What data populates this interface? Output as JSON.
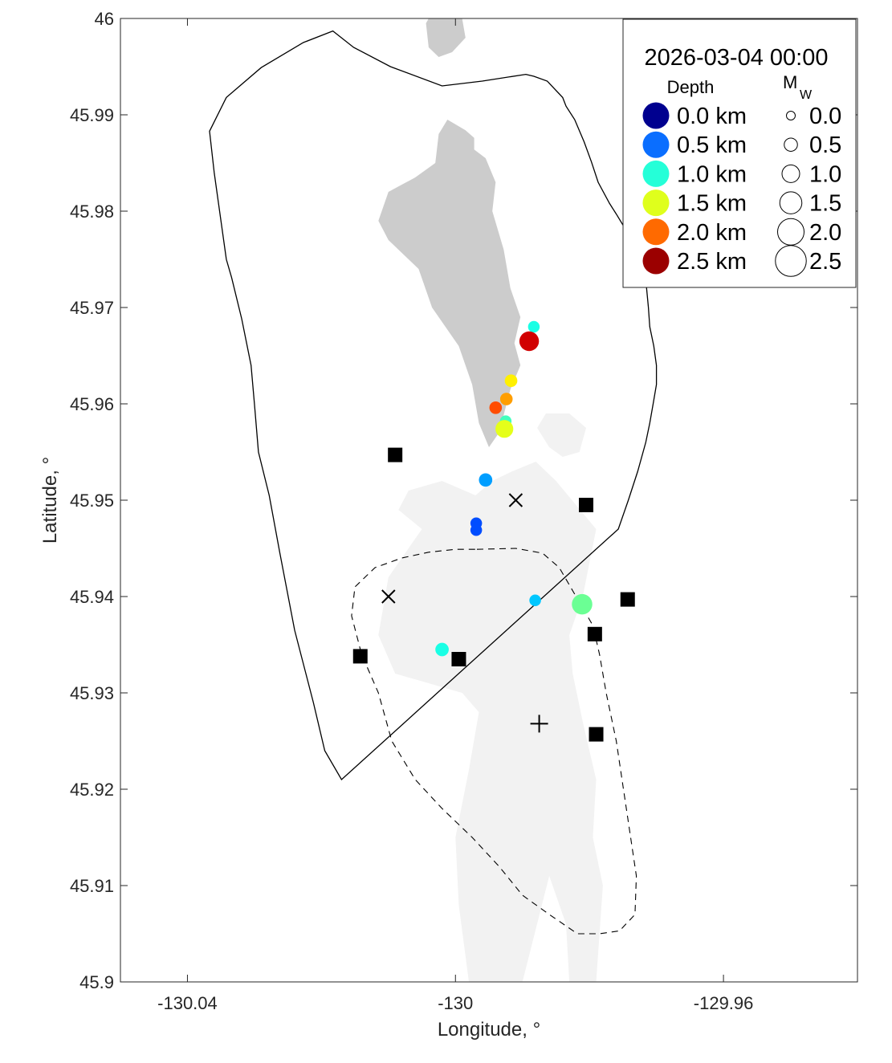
{
  "chart_data": {
    "type": "scatter",
    "title": "2026-03-04 00:00",
    "xlabel": "Longitude, °",
    "ylabel": "Latitude, °",
    "xlim": [
      -130.05,
      -129.94
    ],
    "ylim": [
      45.9,
      46.0
    ],
    "xticks": [
      -130.04,
      -130,
      -129.96
    ],
    "xtick_labels": [
      "-130.04",
      "-130",
      "-129.96"
    ],
    "yticks": [
      45.9,
      45.91,
      45.92,
      45.93,
      45.94,
      45.95,
      45.96,
      45.97,
      45.98,
      45.99,
      46.0
    ],
    "ytick_labels": [
      "45.9",
      "45.91",
      "45.92",
      "45.93",
      "45.94",
      "45.95",
      "45.96",
      "45.97",
      "45.98",
      "45.99",
      "46"
    ],
    "grid": false,
    "legend_position": "top-right",
    "legend": {
      "depth_header": "Depth",
      "mw_header": "M",
      "mw_subscript": "W",
      "depth_entries": [
        {
          "label": "0.0 km",
          "color": "#00008f"
        },
        {
          "label": "0.5 km",
          "color": "#0a6eff"
        },
        {
          "label": "1.0 km",
          "color": "#25ffd8"
        },
        {
          "label": "1.5 km",
          "color": "#dfff1c"
        },
        {
          "label": "2.0 km",
          "color": "#ff6a00"
        },
        {
          "label": "2.5 km",
          "color": "#9b0000"
        }
      ],
      "magnitude_entries": [
        {
          "label": "0.0",
          "mw": 0.0
        },
        {
          "label": "0.5",
          "mw": 0.5
        },
        {
          "label": "1.0",
          "mw": 1.0
        },
        {
          "label": "1.5",
          "mw": 1.5
        },
        {
          "label": "2.0",
          "mw": 2.0
        },
        {
          "label": "2.5",
          "mw": 2.5
        }
      ]
    },
    "earthquakes": [
      {
        "lon": -129.9883,
        "lat": 45.968,
        "depth_km": 1.0,
        "mw": 0.5
      },
      {
        "lon": -129.989,
        "lat": 45.9665,
        "depth_km": 2.3,
        "mw": 1.4
      },
      {
        "lon": -129.9917,
        "lat": 45.9624,
        "depth_km": 1.6,
        "mw": 0.6
      },
      {
        "lon": -129.9924,
        "lat": 45.9605,
        "depth_km": 1.8,
        "mw": 0.6
      },
      {
        "lon": -129.994,
        "lat": 45.9596,
        "depth_km": 2.0,
        "mw": 0.6
      },
      {
        "lon": -129.9925,
        "lat": 45.9582,
        "depth_km": 1.1,
        "mw": 0.5
      },
      {
        "lon": -129.9927,
        "lat": 45.9574,
        "depth_km": 1.5,
        "mw": 1.2
      },
      {
        "lon": -129.9955,
        "lat": 45.9521,
        "depth_km": 0.7,
        "mw": 0.7
      },
      {
        "lon": -129.9969,
        "lat": 45.9476,
        "depth_km": 0.5,
        "mw": 0.5
      },
      {
        "lon": -129.9969,
        "lat": 45.9469,
        "depth_km": 0.5,
        "mw": 0.5
      },
      {
        "lon": -129.9881,
        "lat": 45.9396,
        "depth_km": 0.8,
        "mw": 0.5
      },
      {
        "lon": -129.9811,
        "lat": 45.9392,
        "depth_km": 1.2,
        "mw": 1.5
      },
      {
        "lon": -130.002,
        "lat": 45.9345,
        "depth_km": 1.0,
        "mw": 0.7
      }
    ],
    "stations": [
      {
        "lon": -130.009,
        "lat": 45.9547
      },
      {
        "lon": -129.9805,
        "lat": 45.9495
      },
      {
        "lon": -129.9743,
        "lat": 45.9397
      },
      {
        "lon": -129.9792,
        "lat": 45.9361
      },
      {
        "lon": -130.0142,
        "lat": 45.9338
      },
      {
        "lon": -129.9995,
        "lat": 45.9335
      },
      {
        "lon": -129.979,
        "lat": 45.9257
      }
    ],
    "x_markers": [
      {
        "lon": -129.991,
        "lat": 45.95
      },
      {
        "lon": -130.01,
        "lat": 45.94
      }
    ],
    "plus_markers": [
      {
        "lon": -129.9875,
        "lat": 45.9268
      }
    ],
    "outer_boundary": [
      [
        -129.9895,
        45.9942
      ],
      [
        -129.9883,
        45.994
      ],
      [
        -129.9863,
        45.9935
      ],
      [
        -129.984,
        45.9918
      ],
      [
        -129.9835,
        45.9909
      ],
      [
        -129.9822,
        45.9895
      ],
      [
        -129.9808,
        45.9872
      ],
      [
        -129.9797,
        45.9851
      ],
      [
        -129.9787,
        45.983
      ],
      [
        -129.977,
        45.9808
      ],
      [
        -129.976,
        45.9797
      ],
      [
        -129.974,
        45.9774
      ],
      [
        -129.9732,
        45.976
      ],
      [
        -129.9722,
        45.9743
      ],
      [
        -129.9715,
        45.9722
      ],
      [
        -129.9712,
        45.97
      ],
      [
        -129.971,
        45.968
      ],
      [
        -129.9704,
        45.966
      ],
      [
        -129.97,
        45.964
      ],
      [
        -129.97,
        45.962
      ],
      [
        -129.9705,
        45.96
      ],
      [
        -129.971,
        45.958
      ],
      [
        -129.9716,
        45.956
      ],
      [
        -129.9728,
        45.953
      ],
      [
        -129.9742,
        45.95
      ],
      [
        -129.9757,
        45.947
      ],
      [
        -130.017,
        45.921
      ],
      [
        -130.0195,
        45.924
      ],
      [
        -130.0212,
        45.929
      ],
      [
        -130.024,
        45.9365
      ],
      [
        -130.0262,
        45.9445
      ],
      [
        -130.0278,
        45.9505
      ],
      [
        -130.0294,
        45.955
      ],
      [
        -130.03,
        45.96
      ],
      [
        -130.0305,
        45.964
      ],
      [
        -130.0319,
        45.9688
      ],
      [
        -130.0334,
        45.9731
      ],
      [
        -130.0342,
        45.975
      ],
      [
        -130.036,
        45.984
      ],
      [
        -130.0367,
        45.9883
      ],
      [
        -130.0342,
        45.9918
      ],
      [
        -130.029,
        45.9949
      ],
      [
        -130.0227,
        45.9975
      ],
      [
        -130.0183,
        45.9987
      ],
      [
        -130.0152,
        45.997
      ],
      [
        -130.0097,
        45.995
      ],
      [
        -130.002,
        45.993
      ],
      [
        -129.996,
        45.9935
      ]
    ],
    "caldera_dashed": [
      [
        -129.9968,
        45.9449
      ],
      [
        -129.991,
        45.945
      ],
      [
        -129.987,
        45.9445
      ],
      [
        -129.9845,
        45.943
      ],
      [
        -129.982,
        45.94
      ],
      [
        -129.9795,
        45.937
      ],
      [
        -129.9785,
        45.934
      ],
      [
        -129.9775,
        45.93
      ],
      [
        -129.976,
        45.925
      ],
      [
        -129.9745,
        45.918
      ],
      [
        -129.973,
        45.911
      ],
      [
        -129.9732,
        45.907
      ],
      [
        -129.9755,
        45.9053
      ],
      [
        -129.9785,
        45.905
      ],
      [
        -129.9818,
        45.905
      ],
      [
        -129.986,
        45.907
      ],
      [
        -129.99,
        45.909
      ],
      [
        -129.9935,
        45.912
      ],
      [
        -129.9975,
        45.915
      ],
      [
        -130.002,
        45.918
      ],
      [
        -130.006,
        45.921
      ],
      [
        -130.0095,
        45.925
      ],
      [
        -130.0115,
        45.93
      ],
      [
        -130.014,
        45.934
      ],
      [
        -130.0155,
        45.938
      ],
      [
        -130.015,
        45.941
      ],
      [
        -130.012,
        45.943
      ],
      [
        -130.008,
        45.944
      ],
      [
        -130.004,
        45.9446
      ],
      [
        -130.0,
        45.9449
      ]
    ],
    "dark_gray_regions": [
      [
        [
          -130.0044,
          45.9995
        ],
        [
          -130.004,
          46.0
        ],
        [
          -129.999,
          46.0
        ],
        [
          -129.9985,
          45.998
        ],
        [
          -130.0005,
          45.9965
        ],
        [
          -130.0025,
          45.996
        ],
        [
          -130.004,
          45.997
        ]
      ],
      [
        [
          -129.9985,
          45.9884
        ],
        [
          -129.9972,
          45.9876
        ],
        [
          -129.9972,
          45.9864
        ],
        [
          -129.9955,
          45.9855
        ],
        [
          -129.994,
          45.983
        ],
        [
          -129.9945,
          45.98
        ],
        [
          -129.9928,
          45.976
        ],
        [
          -129.9918,
          45.972
        ],
        [
          -129.9903,
          45.969
        ],
        [
          -129.9912,
          45.9663
        ],
        [
          -129.9903,
          45.964
        ],
        [
          -129.9918,
          45.9615
        ],
        [
          -129.9935,
          45.957
        ],
        [
          -129.995,
          45.9555
        ],
        [
          -129.9965,
          45.958
        ],
        [
          -129.9975,
          45.962
        ],
        [
          -129.9995,
          45.966
        ],
        [
          -130.0035,
          45.97
        ],
        [
          -130.0055,
          45.974
        ],
        [
          -130.01,
          45.977
        ],
        [
          -130.0115,
          45.979
        ],
        [
          -130.01,
          45.982
        ],
        [
          -130.006,
          45.9835
        ],
        [
          -130.003,
          45.985
        ],
        [
          -130.0025,
          45.988
        ],
        [
          -130.0012,
          45.9895
        ]
      ]
    ],
    "light_gray_regions": [
      [
        [
          -129.9915,
          45.953
        ],
        [
          -129.988,
          45.954
        ],
        [
          -129.985,
          45.952
        ],
        [
          -129.979,
          45.947
        ],
        [
          -129.981,
          45.94
        ],
        [
          -129.983,
          45.936
        ],
        [
          -129.9825,
          45.932
        ],
        [
          -129.981,
          45.927
        ],
        [
          -129.979,
          45.921
        ],
        [
          -129.9795,
          45.915
        ],
        [
          -129.978,
          45.91
        ],
        [
          -129.979,
          45.9
        ],
        [
          -129.983,
          45.9
        ],
        [
          -129.9835,
          45.906
        ],
        [
          -129.986,
          45.911
        ],
        [
          -129.99,
          45.9
        ],
        [
          -129.998,
          45.9
        ],
        [
          -129.9995,
          45.908
        ],
        [
          -130.0,
          45.915
        ],
        [
          -129.998,
          45.922
        ],
        [
          -129.9965,
          45.928
        ],
        [
          -129.999,
          45.93
        ],
        [
          -130.004,
          45.931
        ],
        [
          -130.009,
          45.932
        ],
        [
          -130.0115,
          45.936
        ],
        [
          -130.01,
          45.942
        ],
        [
          -130.005,
          45.947
        ],
        [
          -130.0085,
          45.949
        ],
        [
          -130.007,
          45.951
        ],
        [
          -130.002,
          45.952
        ],
        [
          -129.997,
          45.9505
        ],
        [
          -129.9945,
          45.952
        ]
      ],
      [
        [
          -129.9865,
          45.959
        ],
        [
          -129.983,
          45.959
        ],
        [
          -129.9805,
          45.9575
        ],
        [
          -129.9815,
          45.955
        ],
        [
          -129.984,
          45.9545
        ],
        [
          -129.986,
          45.9555
        ],
        [
          -129.9878,
          45.9575
        ]
      ]
    ]
  }
}
